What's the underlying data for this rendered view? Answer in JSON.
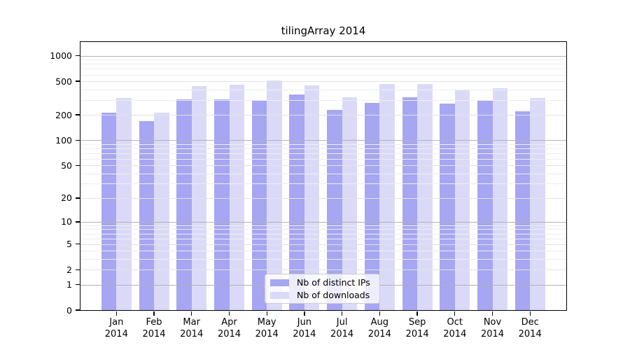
{
  "chart_data": {
    "type": "bar",
    "title": "tilingArray 2014",
    "year": "2014",
    "categories": [
      "Jan",
      "Feb",
      "Mar",
      "Apr",
      "May",
      "Jun",
      "Jul",
      "Aug",
      "Sep",
      "Oct",
      "Nov",
      "Dec"
    ],
    "series": [
      {
        "key": "distinct-ips",
        "name": "Nb of distinct IPs",
        "color": "#a6a6f2",
        "values": [
          214,
          170,
          304,
          306,
          300,
          348,
          228,
          276,
          326,
          272,
          294,
          219
        ]
      },
      {
        "key": "downloads",
        "name": "Nb of downloads",
        "color": "#dadaf8",
        "values": [
          316,
          212,
          438,
          455,
          510,
          448,
          326,
          460,
          468,
          394,
          417,
          316
        ]
      }
    ],
    "y_scale": "log10(value+1)",
    "y_ticks": [
      0,
      1,
      2,
      5,
      10,
      20,
      50,
      100,
      200,
      500,
      1000
    ],
    "y_tick_labels": [
      "0",
      "1",
      "2",
      "5",
      "10",
      "20",
      "50",
      "100",
      "200",
      "500",
      "1000"
    ],
    "y_minor_ticks": [
      3,
      4,
      6,
      7,
      8,
      9,
      30,
      40,
      60,
      70,
      80,
      90,
      300,
      400,
      600,
      700,
      800,
      900
    ],
    "y_decade_ticks": [
      1,
      10,
      100,
      1000
    ],
    "ylim": [
      0,
      1455
    ],
    "grid": true,
    "legend_position": "bottom-center",
    "colors": {
      "grid_decade": "#b3b3b3",
      "grid_major": "#e2e2e2",
      "grid_minor": "#eeeeee",
      "axis": "#000000",
      "background": "#ffffff"
    }
  }
}
